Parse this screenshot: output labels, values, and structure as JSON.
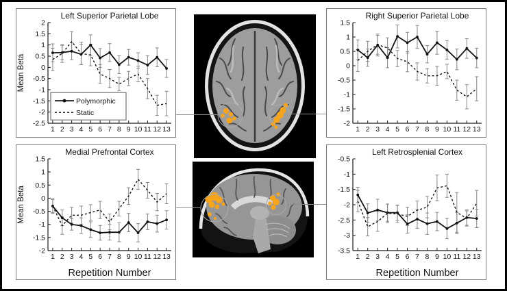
{
  "chart_data": [
    {
      "type": "line",
      "title": "Left Superior Parietal Lobe",
      "ylabel": "Mean Beta",
      "xlabel": "",
      "ylim": [
        -2.5,
        2
      ],
      "yticks": [
        2,
        1.5,
        1,
        0.5,
        0,
        -0.5,
        -1,
        -1.5,
        -2,
        -2.5
      ],
      "x": [
        1,
        2,
        3,
        4,
        5,
        6,
        7,
        8,
        9,
        10,
        11,
        12,
        13
      ],
      "legend": true,
      "legend_position": "bottom-left",
      "series": [
        {
          "name": "Polymorphic",
          "style": "solid-circle",
          "values": [
            0.65,
            0.66,
            0.72,
            0.58,
            1.0,
            0.42,
            0.66,
            0.12,
            0.45,
            0.3,
            0.1,
            0.45,
            -0.05
          ],
          "errors": [
            0.4,
            0.32,
            0.38,
            0.45,
            0.45,
            0.42,
            0.4,
            0.4,
            0.35,
            0.35,
            0.42,
            0.42,
            0.4
          ]
        },
        {
          "name": "Static",
          "style": "dashed",
          "values": [
            0.35,
            0.62,
            1.15,
            0.62,
            0.55,
            -0.3,
            -0.5,
            -0.75,
            -0.5,
            -0.3,
            -0.95,
            -1.7,
            -1.62
          ],
          "errors": [
            0.5,
            0.4,
            0.45,
            0.5,
            0.48,
            0.42,
            0.4,
            0.3,
            0.32,
            0.35,
            0.45,
            0.45,
            0.55
          ]
        }
      ]
    },
    {
      "type": "line",
      "title": "Right Superior Parietal Lobe",
      "ylabel": "",
      "xlabel": "",
      "ylim": [
        -2,
        1.5
      ],
      "yticks": [
        1.5,
        1,
        0.5,
        0,
        -0.5,
        -1,
        -1.5,
        -2
      ],
      "x": [
        1,
        2,
        3,
        4,
        5,
        6,
        7,
        8,
        9,
        10,
        11,
        12,
        13
      ],
      "legend": false,
      "series": [
        {
          "name": "Polymorphic",
          "style": "solid-circle",
          "values": [
            0.55,
            0.28,
            0.72,
            0.28,
            1.02,
            0.8,
            1.0,
            0.4,
            0.8,
            0.55,
            0.22,
            0.6,
            0.27
          ],
          "errors": [
            0.35,
            0.3,
            0.38,
            0.35,
            0.4,
            0.36,
            0.4,
            0.3,
            0.4,
            0.32,
            0.36,
            0.34,
            0.34
          ]
        },
        {
          "name": "Static",
          "style": "dashed",
          "values": [
            0.18,
            0.5,
            0.73,
            0.62,
            0.25,
            0.14,
            -0.2,
            -0.35,
            -0.35,
            -0.2,
            -0.85,
            -1.08,
            -0.8
          ],
          "errors": [
            0.38,
            0.35,
            0.33,
            0.35,
            0.28,
            0.35,
            0.3,
            0.25,
            0.33,
            0.25,
            0.35,
            0.42,
            0.42
          ]
        }
      ]
    },
    {
      "type": "line",
      "title": "Medial Prefrontal Cortex",
      "ylabel": "Mean Beta",
      "xlabel": "Repetition Number",
      "ylim": [
        -2,
        1.5
      ],
      "yticks": [
        1.5,
        1,
        0.5,
        0,
        -0.5,
        -1,
        -1.5,
        -2
      ],
      "x": [
        1,
        2,
        3,
        4,
        5,
        6,
        7,
        8,
        9,
        10,
        11,
        12,
        13
      ],
      "legend": false,
      "series": [
        {
          "name": "Polymorphic",
          "style": "solid-circle",
          "values": [
            -0.3,
            -0.75,
            -1.0,
            -1.05,
            -1.2,
            -1.32,
            -1.3,
            -1.3,
            -0.93,
            -1.32,
            -0.9,
            -0.97,
            -0.83
          ],
          "errors": [
            0.28,
            0.3,
            0.22,
            0.3,
            0.3,
            0.28,
            0.3,
            0.36,
            0.35,
            0.35,
            0.3,
            0.32,
            0.35
          ]
        },
        {
          "name": "Static",
          "style": "dashed",
          "values": [
            -0.3,
            -1.05,
            -0.65,
            -0.65,
            -0.55,
            -0.45,
            -0.9,
            -0.4,
            0.08,
            0.72,
            0.3,
            -0.15,
            0.17
          ],
          "errors": [
            0.25,
            0.33,
            0.3,
            0.35,
            0.3,
            0.33,
            0.3,
            0.28,
            0.32,
            0.38,
            0.3,
            0.33,
            0.38
          ]
        }
      ]
    },
    {
      "type": "line",
      "title": "Left Retrosplenial Cortex",
      "ylabel": "",
      "xlabel": "Repetition Number",
      "ylim": [
        -3.5,
        -0.5
      ],
      "yticks": [
        -0.5,
        -1,
        -1.5,
        -2,
        -2.5,
        -3,
        -3.5
      ],
      "x": [
        1,
        2,
        3,
        4,
        5,
        6,
        7,
        8,
        9,
        10,
        11,
        12,
        13
      ],
      "legend": false,
      "series": [
        {
          "name": "Polymorphic",
          "style": "solid-circle",
          "values": [
            -1.68,
            -2.27,
            -2.17,
            -2.26,
            -2.26,
            -2.63,
            -2.47,
            -2.62,
            -2.55,
            -2.78,
            -2.6,
            -2.42,
            -2.45
          ],
          "errors": [
            0.25,
            0.3,
            0.35,
            0.28,
            0.25,
            0.3,
            0.3,
            0.35,
            0.3,
            0.33,
            0.35,
            0.25,
            0.3
          ]
        },
        {
          "name": "Static",
          "style": "dashed",
          "values": [
            -1.88,
            -2.72,
            -2.55,
            -2.28,
            -2.3,
            -2.38,
            -2.18,
            -2.08,
            -1.45,
            -1.38,
            -2.25,
            -2.45,
            -1.95
          ],
          "errors": [
            0.35,
            0.3,
            0.32,
            0.3,
            0.28,
            0.3,
            0.3,
            0.35,
            0.42,
            0.38,
            0.65,
            0.25,
            0.42
          ]
        }
      ]
    }
  ],
  "brain": {
    "activation_color": "#F7A41D"
  }
}
